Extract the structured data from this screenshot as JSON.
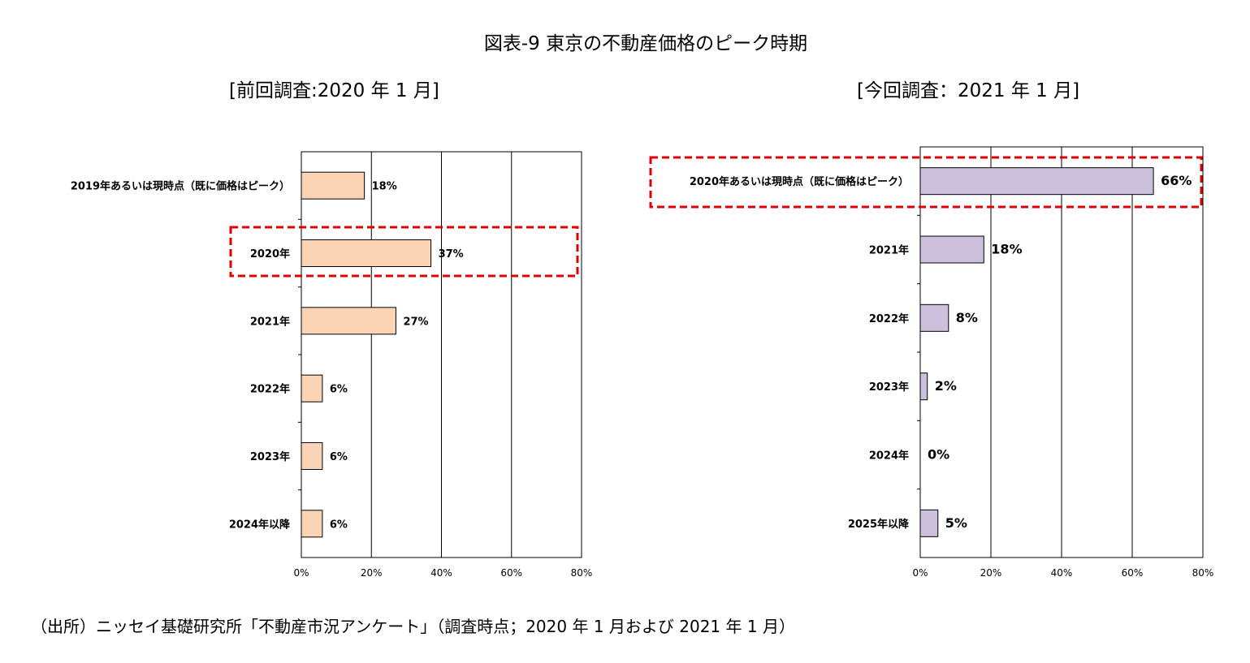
{
  "title": "図表-9 東京の不動産価格のピーク時期",
  "source": "（出所）ニッセイ基礎研究所「不動産市況アンケート」（調査時点；2020 年 1 月および 2021 年 1 月）",
  "colors": {
    "left_bar": "#fad4b4",
    "right_bar": "#ccc0dc",
    "highlight": "#e00000"
  },
  "chart_data": [
    {
      "type": "bar",
      "orientation": "horizontal",
      "title": "[前回調査:2020 年 1 月]",
      "categories": [
        "2019年あるいは現時点（既に価格はピーク）",
        "2020年",
        "2021年",
        "2022年",
        "2023年",
        "2024年以降"
      ],
      "values": [
        18,
        37,
        27,
        6,
        6,
        6
      ],
      "value_labels": [
        "18%",
        "37%",
        "27%",
        "6%",
        "6%",
        "6%"
      ],
      "xlim": [
        0,
        80
      ],
      "x_ticks": [
        "0%",
        "20%",
        "40%",
        "60%",
        "80%"
      ],
      "grid": true,
      "highlighted_category": "2020年"
    },
    {
      "type": "bar",
      "orientation": "horizontal",
      "title": "[今回調査：2021 年 1 月]",
      "categories": [
        "2020年あるいは現時点（既に価格はピーク）",
        "2021年",
        "2022年",
        "2023年",
        "2024年",
        "2025年以降"
      ],
      "values": [
        66,
        18,
        8,
        2,
        0,
        5
      ],
      "value_labels": [
        "66%",
        "18%",
        "8%",
        "2%",
        "0%",
        "5%"
      ],
      "xlim": [
        0,
        80
      ],
      "x_ticks": [
        "0%",
        "20%",
        "40%",
        "60%",
        "80%"
      ],
      "grid": true,
      "highlighted_category": "2020年あるいは現時点（既に価格はピーク）"
    }
  ]
}
